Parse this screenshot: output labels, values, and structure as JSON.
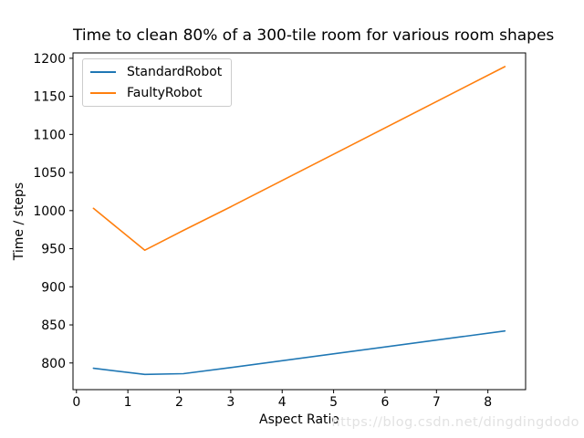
{
  "page": {
    "watermark": "https://blog.csdn.net/dingdingdodo"
  },
  "chart_data": {
    "type": "line",
    "title": "Time to clean 80% of a 300-tile room for various room shapes",
    "xlabel": "Aspect Ratio",
    "ylabel": "Time / steps",
    "xlim": [
      -0.067,
      8.733
    ],
    "ylim": [
      765,
      1207
    ],
    "x_ticks": [
      0,
      1,
      2,
      3,
      4,
      5,
      6,
      7,
      8
    ],
    "y_ticks": [
      800,
      850,
      900,
      950,
      1000,
      1050,
      1100,
      1150,
      1200
    ],
    "grid": false,
    "legend_position": "upper left",
    "x": [
      0.33,
      1.33,
      2.08,
      3.0,
      8.33
    ],
    "series": [
      {
        "name": "StandardRobot",
        "color": "#1f77b4",
        "values": [
          793,
          785,
          786,
          794,
          842
        ]
      },
      {
        "name": "FaultyRobot",
        "color": "#ff7f0e",
        "values": [
          1003,
          948,
          974,
          1005,
          1189
        ]
      }
    ],
    "axis_color": "#000000",
    "background_color": "#ffffff"
  }
}
